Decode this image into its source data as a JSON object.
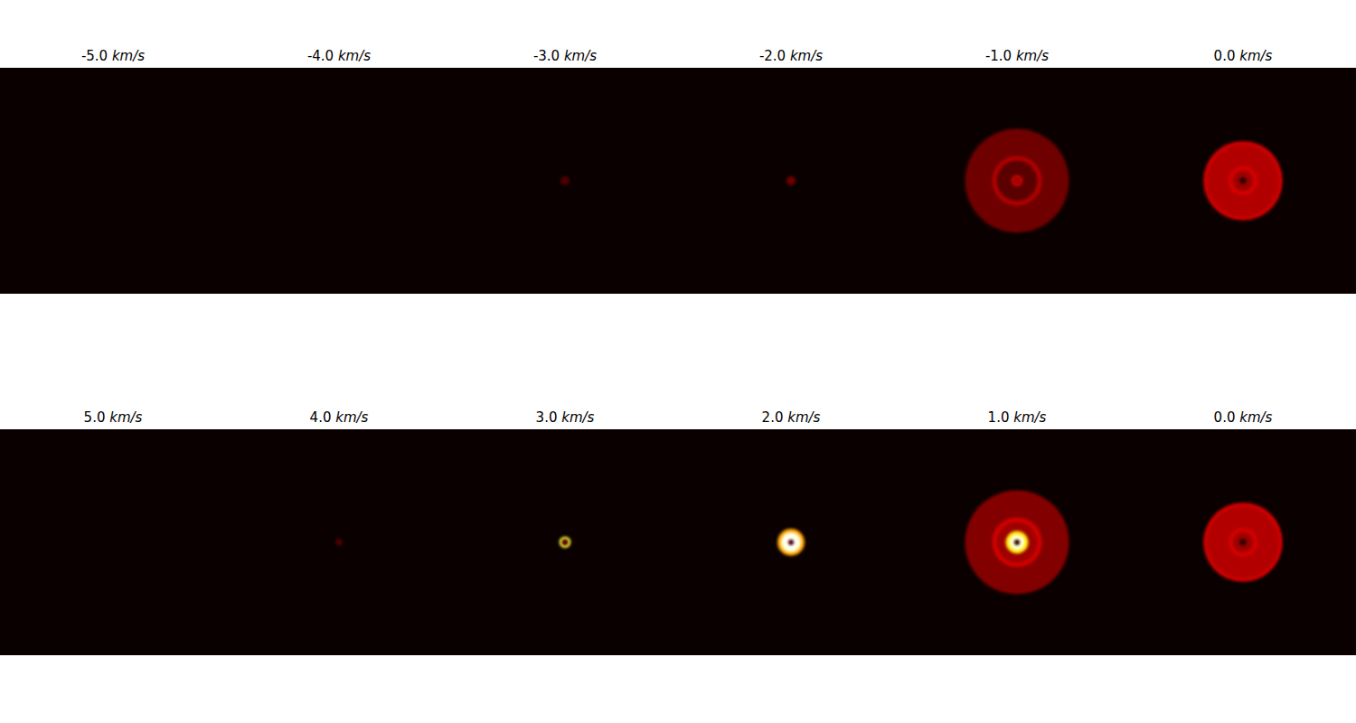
{
  "chart_data": [
    {
      "type": "image",
      "title": "-5.0 km/s",
      "xlim": [
        -1,
        1
      ],
      "ylim": [
        -1,
        1
      ],
      "tick_labels": false,
      "zlim": [
        0,
        1
      ],
      "disks": []
    },
    {
      "type": "image",
      "title": "-4.0 km/s",
      "xlim": [
        -1,
        1
      ],
      "ylim": [
        -1,
        1
      ],
      "tick_labels": false,
      "zlim": [
        0,
        1
      ],
      "disks": []
    },
    {
      "type": "image",
      "title": "-3.0 km/s",
      "xlim": [
        -1,
        1
      ],
      "ylim": [
        -1,
        1
      ],
      "tick_labels": false,
      "zlim": [
        0,
        1
      ],
      "disks": [
        {
          "r": 0.04,
          "intensity": 0.1
        }
      ]
    },
    {
      "type": "image",
      "title": "-2.0 km/s",
      "xlim": [
        -1,
        1
      ],
      "ylim": [
        -1,
        1
      ],
      "tick_labels": false,
      "zlim": [
        0,
        1
      ],
      "disks": [
        {
          "r": 0.04,
          "intensity": 0.15
        }
      ]
    },
    {
      "type": "image",
      "title": "-1.0 km/s",
      "xlim": [
        -1,
        1
      ],
      "ylim": [
        -1,
        1
      ],
      "tick_labels": false,
      "zlim": [
        0,
        1
      ],
      "disks": [
        {
          "r": 0.46,
          "intensity": 0.15
        },
        {
          "r": 0.22,
          "intensity": 0.25
        },
        {
          "r": 0.18,
          "intensity": 0.12
        },
        {
          "r": 0.05,
          "intensity": 0.3
        },
        {
          "r": 0.03,
          "intensity": 0.2
        }
      ]
    },
    {
      "type": "image",
      "title": "0.0 km/s",
      "xlim": [
        -1,
        1
      ],
      "ylim": [
        -1,
        1
      ],
      "tick_labels": false,
      "zlim": [
        0,
        1
      ],
      "disks": [
        {
          "r": 0.35,
          "intensity": 0.3
        },
        {
          "r": 0.32,
          "intensity": 0.25
        },
        {
          "r": 0.13,
          "intensity": 0.3
        },
        {
          "r": 0.09,
          "intensity": 0.22
        },
        {
          "r": 0.03,
          "intensity": 0.05
        }
      ]
    },
    {
      "type": "image",
      "title": "5.0 km/s",
      "xlim": [
        -1,
        1
      ],
      "ylim": [
        -1,
        1
      ],
      "tick_labels": false,
      "zlim": [
        0,
        1
      ],
      "disks": []
    },
    {
      "type": "image",
      "title": "4.0 km/s",
      "xlim": [
        -1,
        1
      ],
      "ylim": [
        -1,
        1
      ],
      "tick_labels": false,
      "zlim": [
        0,
        1
      ],
      "disks": [
        {
          "r": 0.03,
          "intensity": 0.1
        }
      ]
    },
    {
      "type": "image",
      "title": "3.0 km/s",
      "xlim": [
        -1,
        1
      ],
      "ylim": [
        -1,
        1
      ],
      "tick_labels": false,
      "zlim": [
        0,
        1
      ],
      "disks": [
        {
          "r": 0.05,
          "intensity": 0.8
        },
        {
          "r": 0.03,
          "intensity": 0.1
        }
      ]
    },
    {
      "type": "image",
      "title": "2.0 km/s",
      "xlim": [
        -1,
        1
      ],
      "ylim": [
        -1,
        1
      ],
      "tick_labels": false,
      "zlim": [
        0,
        1
      ],
      "disks": [
        {
          "r": 0.12,
          "intensity": 0.6
        },
        {
          "r": 0.09,
          "intensity": 0.95
        },
        {
          "r": 0.06,
          "intensity": 1.0
        },
        {
          "r": 0.025,
          "intensity": 0.1
        }
      ]
    },
    {
      "type": "image",
      "title": "1.0 km/s",
      "xlim": [
        -1,
        1
      ],
      "ylim": [
        -1,
        1
      ],
      "tick_labels": false,
      "zlim": [
        0,
        1
      ],
      "disks": [
        {
          "r": 0.46,
          "intensity": 0.18
        },
        {
          "r": 0.22,
          "intensity": 0.3
        },
        {
          "r": 0.18,
          "intensity": 0.22
        },
        {
          "r": 0.1,
          "intensity": 0.7
        },
        {
          "r": 0.07,
          "intensity": 0.95
        },
        {
          "r": 0.025,
          "intensity": 0.05
        }
      ]
    },
    {
      "type": "image",
      "title": "0.0 km/s",
      "xlim": [
        -1,
        1
      ],
      "ylim": [
        -1,
        1
      ],
      "tick_labels": false,
      "zlim": [
        0,
        1
      ],
      "disks": [
        {
          "r": 0.35,
          "intensity": 0.3
        },
        {
          "r": 0.32,
          "intensity": 0.25
        },
        {
          "r": 0.13,
          "intensity": 0.3
        },
        {
          "r": 0.09,
          "intensity": 0.22
        },
        {
          "r": 0.03,
          "intensity": 0.05
        }
      ]
    }
  ]
}
